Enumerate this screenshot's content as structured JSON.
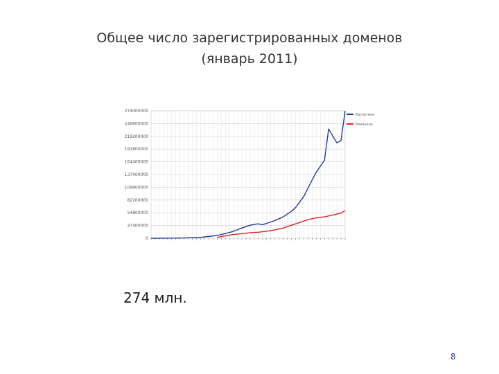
{
  "slide": {
    "title_line1": "Общее число зарегистрированных доменов",
    "title_line2": "(январь 2011)",
    "caption": "274 млн.",
    "page_number": "8"
  },
  "chart_data": {
    "type": "line",
    "ylim": [
      0,
      274000000
    ],
    "y_ticks": [
      {
        "label": "0",
        "value": 0
      },
      {
        "label": "27400000",
        "value": 27400000
      },
      {
        "label": "54800000",
        "value": 54800000
      },
      {
        "label": "82200000",
        "value": 82200000
      },
      {
        "label": "109600000",
        "value": 109600000
      },
      {
        "label": "137000000",
        "value": 137000000
      },
      {
        "label": "164400000",
        "value": 164400000
      },
      {
        "label": "191800000",
        "value": 191800000
      },
      {
        "label": "219200000",
        "value": 219200000
      },
      {
        "label": "246600000",
        "value": 246600000
      },
      {
        "label": "274000000",
        "value": 274000000
      }
    ],
    "x_tick_count": 48,
    "grid": true,
    "legend_position": "top-right",
    "colors": {
      "series1": "#1f3a93",
      "series2": "#e02020"
    },
    "series": [
      {
        "name": "Расчетное",
        "color": "#1f3a93",
        "x": [
          0,
          4,
          8,
          12,
          16,
          18,
          20,
          22,
          24,
          25,
          26,
          27,
          28,
          29,
          30,
          31,
          32,
          33,
          34,
          35,
          36,
          37,
          38,
          39,
          40,
          41,
          42,
          43,
          44,
          45,
          46,
          47
        ],
        "y": [
          0,
          150000,
          600000,
          2000000,
          6000000,
          10000000,
          15000000,
          22000000,
          28000000,
          30000000,
          31000000,
          29000000,
          32000000,
          35000000,
          38000000,
          42000000,
          46000000,
          52000000,
          58000000,
          66000000,
          78000000,
          90000000,
          108000000,
          125000000,
          142000000,
          155000000,
          168000000,
          235000000,
          220000000,
          205000000,
          210000000,
          274000000
        ]
      },
      {
        "name": "Реальное",
        "color": "#e02020",
        "x": [
          16,
          18,
          20,
          22,
          24,
          26,
          28,
          30,
          32,
          34,
          36,
          38,
          40,
          42,
          44,
          46,
          47
        ],
        "y": [
          2000000,
          5000000,
          8000000,
          10000000,
          12000000,
          13000000,
          15000000,
          18000000,
          22000000,
          28000000,
          34000000,
          40000000,
          44000000,
          46000000,
          50000000,
          54000000,
          60000000
        ]
      }
    ]
  }
}
